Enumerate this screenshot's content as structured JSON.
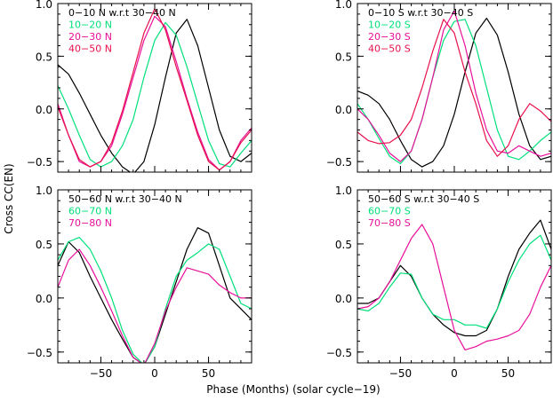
{
  "figure": {
    "ylabel": "Cross CC(EN)",
    "xlabel": "Phase (Months) (solar cycle−19)"
  },
  "colors": {
    "black": "#000000",
    "green": "#00e07a",
    "magenta": "#e8109a",
    "crimson": "#e8104c"
  },
  "chart_data": [
    {
      "type": "line",
      "panel": "top-left",
      "xlim": [
        -90,
        90
      ],
      "ylim": [
        -0.6,
        1.0
      ],
      "xticks": [
        -50,
        0,
        50
      ],
      "yticks": [
        -0.5,
        0.0,
        0.5,
        1.0
      ],
      "xtick_labels": [
        "",
        "",
        ""
      ],
      "ytick_labels": [
        "−0.5",
        "0.0",
        "0.5",
        "1.0"
      ],
      "legend_position": "top-left",
      "series": [
        {
          "name": "0−10 N w.r.t 30−40 N",
          "color": "#000000",
          "x": [
            -90,
            -80,
            -70,
            -60,
            -50,
            -40,
            -30,
            -20,
            -10,
            0,
            10,
            20,
            30,
            40,
            50,
            60,
            70,
            80,
            90
          ],
          "y": [
            0.42,
            0.33,
            0.15,
            -0.05,
            -0.25,
            -0.42,
            -0.55,
            -0.62,
            -0.5,
            -0.15,
            0.3,
            0.72,
            0.85,
            0.6,
            0.2,
            -0.2,
            -0.45,
            -0.5,
            -0.42
          ]
        },
        {
          "name": "10−20 N",
          "color": "#00e07a",
          "x": [
            -90,
            -80,
            -70,
            -60,
            -50,
            -40,
            -30,
            -20,
            -10,
            0,
            10,
            20,
            30,
            40,
            50,
            60,
            70,
            80,
            90
          ],
          "y": [
            0.22,
            0.0,
            -0.25,
            -0.48,
            -0.55,
            -0.5,
            -0.35,
            -0.1,
            0.3,
            0.65,
            0.82,
            0.7,
            0.4,
            0.05,
            -0.3,
            -0.52,
            -0.55,
            -0.42,
            -0.3
          ]
        },
        {
          "name": "20−30 N",
          "color": "#e8109a",
          "x": [
            -90,
            -80,
            -70,
            -60,
            -50,
            -40,
            -30,
            -20,
            -10,
            0,
            10,
            20,
            30,
            40,
            50,
            60,
            70,
            80,
            90
          ],
          "y": [
            0.05,
            -0.25,
            -0.5,
            -0.55,
            -0.5,
            -0.35,
            -0.05,
            0.3,
            0.65,
            0.88,
            0.78,
            0.45,
            0.1,
            -0.22,
            -0.48,
            -0.58,
            -0.5,
            -0.3,
            -0.18
          ]
        },
        {
          "name": "40−50 N",
          "color": "#e8104c",
          "x": [
            -90,
            -80,
            -70,
            -60,
            -50,
            -40,
            -30,
            -20,
            -10,
            0,
            10,
            20,
            30,
            40,
            50,
            60,
            70,
            80,
            90
          ],
          "y": [
            0.02,
            -0.25,
            -0.48,
            -0.55,
            -0.5,
            -0.32,
            -0.02,
            0.35,
            0.72,
            0.95,
            0.75,
            0.4,
            0.08,
            -0.25,
            -0.5,
            -0.58,
            -0.5,
            -0.32,
            -0.2
          ]
        }
      ]
    },
    {
      "type": "line",
      "panel": "top-right",
      "xlim": [
        -90,
        90
      ],
      "ylim": [
        -0.6,
        1.0
      ],
      "xticks": [
        -50,
        0,
        50
      ],
      "yticks": [
        -0.5,
        0.0,
        0.5,
        1.0
      ],
      "xtick_labels": [
        "",
        "",
        ""
      ],
      "ytick_labels": [
        "−0.5",
        "0.0",
        "0.5",
        "1.0"
      ],
      "legend_position": "top-left",
      "series": [
        {
          "name": "0−10 S w.r.t 30−40 S",
          "color": "#000000",
          "x": [
            -90,
            -80,
            -70,
            -60,
            -50,
            -40,
            -30,
            -20,
            -10,
            0,
            10,
            20,
            30,
            40,
            50,
            60,
            70,
            80,
            90
          ],
          "y": [
            0.17,
            0.13,
            0.05,
            -0.1,
            -0.3,
            -0.48,
            -0.55,
            -0.5,
            -0.35,
            -0.05,
            0.35,
            0.72,
            0.86,
            0.7,
            0.35,
            -0.05,
            -0.35,
            -0.48,
            -0.45
          ]
        },
        {
          "name": "10−20 S",
          "color": "#00e07a",
          "x": [
            -90,
            -80,
            -70,
            -60,
            -50,
            -40,
            -30,
            -20,
            -10,
            0,
            10,
            20,
            30,
            40,
            50,
            60,
            70,
            80,
            90
          ],
          "y": [
            0.05,
            -0.1,
            -0.28,
            -0.45,
            -0.52,
            -0.4,
            -0.1,
            0.3,
            0.65,
            0.83,
            0.85,
            0.6,
            0.2,
            -0.2,
            -0.45,
            -0.48,
            -0.4,
            -0.3,
            -0.22
          ]
        },
        {
          "name": "20−30 S",
          "color": "#e8109a",
          "x": [
            -90,
            -80,
            -70,
            -60,
            -50,
            -40,
            -30,
            -20,
            -10,
            0,
            10,
            20,
            30,
            40,
            50,
            60,
            70,
            80,
            90
          ],
          "y": [
            0.0,
            -0.1,
            -0.25,
            -0.42,
            -0.5,
            -0.4,
            -0.1,
            0.3,
            0.75,
            0.93,
            0.6,
            0.15,
            -0.2,
            -0.4,
            -0.42,
            -0.35,
            -0.4,
            -0.45,
            -0.42
          ]
        },
        {
          "name": "40−50 S",
          "color": "#e8104c",
          "x": [
            -90,
            -80,
            -70,
            -60,
            -50,
            -40,
            -30,
            -20,
            -10,
            0,
            10,
            20,
            30,
            40,
            50,
            60,
            70,
            80,
            90
          ],
          "y": [
            -0.22,
            -0.3,
            -0.33,
            -0.32,
            -0.25,
            -0.1,
            0.2,
            0.55,
            0.85,
            0.72,
            0.35,
            0.05,
            -0.3,
            -0.45,
            -0.35,
            -0.1,
            0.05,
            -0.02,
            -0.12
          ]
        }
      ]
    },
    {
      "type": "line",
      "panel": "bottom-left",
      "xlim": [
        -90,
        90
      ],
      "ylim": [
        -0.6,
        1.0
      ],
      "xticks": [
        -50,
        0,
        50
      ],
      "yticks": [
        -0.5,
        0.0,
        0.5,
        1.0
      ],
      "xtick_labels": [
        "−50",
        "0",
        "50"
      ],
      "ytick_labels": [
        "−0.5",
        "0.0",
        "0.5",
        "1.0"
      ],
      "legend_position": "top-left",
      "series": [
        {
          "name": "50−60 N w.r.t 30−40 N",
          "color": "#000000",
          "x": [
            -90,
            -80,
            -70,
            -60,
            -50,
            -40,
            -30,
            -20,
            -10,
            0,
            10,
            20,
            30,
            40,
            50,
            60,
            70,
            80,
            90
          ],
          "y": [
            0.3,
            0.52,
            0.42,
            0.2,
            0.0,
            -0.2,
            -0.38,
            -0.55,
            -0.62,
            -0.45,
            -0.15,
            0.15,
            0.45,
            0.65,
            0.6,
            0.3,
            0.0,
            -0.1,
            -0.2
          ]
        },
        {
          "name": "60−70 N",
          "color": "#00e07a",
          "x": [
            -90,
            -80,
            -70,
            -60,
            -50,
            -40,
            -30,
            -20,
            -10,
            0,
            10,
            20,
            30,
            40,
            50,
            60,
            70,
            80,
            90
          ],
          "y": [
            0.35,
            0.52,
            0.56,
            0.45,
            0.25,
            0.0,
            -0.3,
            -0.52,
            -0.62,
            -0.45,
            -0.1,
            0.2,
            0.35,
            0.42,
            0.5,
            0.45,
            0.2,
            -0.05,
            -0.1
          ]
        },
        {
          "name": "70−80 N",
          "color": "#e8109a",
          "x": [
            -90,
            -80,
            -70,
            -60,
            -50,
            -40,
            -30,
            -20,
            -10,
            0,
            10,
            20,
            30,
            40,
            50,
            60,
            70,
            80,
            90
          ],
          "y": [
            0.1,
            0.35,
            0.45,
            0.3,
            0.1,
            -0.12,
            -0.35,
            -0.55,
            -0.62,
            -0.42,
            -0.12,
            0.1,
            0.28,
            0.25,
            0.22,
            0.12,
            0.05,
            0.0,
            0.0
          ]
        }
      ]
    },
    {
      "type": "line",
      "panel": "bottom-right",
      "xlim": [
        -90,
        90
      ],
      "ylim": [
        -0.6,
        1.0
      ],
      "xticks": [
        -50,
        0,
        50
      ],
      "yticks": [
        -0.5,
        0.0,
        0.5,
        1.0
      ],
      "xtick_labels": [
        "−50",
        "0",
        "50"
      ],
      "ytick_labels": [
        "−0.5",
        "0.0",
        "0.5",
        "1.0"
      ],
      "legend_position": "top-left",
      "series": [
        {
          "name": "50−60 S w.r.t 30−40 S",
          "color": "#000000",
          "x": [
            -90,
            -80,
            -70,
            -60,
            -50,
            -40,
            -30,
            -20,
            -10,
            0,
            10,
            20,
            30,
            40,
            50,
            60,
            70,
            80,
            90
          ],
          "y": [
            -0.05,
            -0.05,
            0.0,
            0.15,
            0.3,
            0.2,
            0.0,
            -0.15,
            -0.25,
            -0.32,
            -0.35,
            -0.35,
            -0.3,
            -0.1,
            0.2,
            0.45,
            0.6,
            0.72,
            0.45
          ]
        },
        {
          "name": "60−70 S",
          "color": "#00e07a",
          "x": [
            -90,
            -80,
            -70,
            -60,
            -50,
            -40,
            -30,
            -20,
            -10,
            0,
            10,
            20,
            30,
            40,
            50,
            60,
            70,
            80,
            90
          ],
          "y": [
            -0.1,
            -0.12,
            -0.05,
            0.1,
            0.23,
            0.22,
            0.0,
            -0.15,
            -0.2,
            -0.2,
            -0.25,
            -0.25,
            -0.28,
            -0.1,
            0.15,
            0.35,
            0.5,
            0.58,
            0.35
          ]
        },
        {
          "name": "70−80 S",
          "color": "#e8109a",
          "x": [
            -90,
            -80,
            -70,
            -60,
            -50,
            -40,
            -30,
            -20,
            -10,
            0,
            10,
            20,
            30,
            40,
            50,
            60,
            70,
            80,
            90
          ],
          "y": [
            -0.1,
            -0.08,
            0.0,
            0.15,
            0.35,
            0.55,
            0.68,
            0.5,
            0.1,
            -0.3,
            -0.48,
            -0.45,
            -0.4,
            -0.38,
            -0.35,
            -0.3,
            -0.15,
            0.1,
            0.3
          ]
        }
      ]
    }
  ]
}
